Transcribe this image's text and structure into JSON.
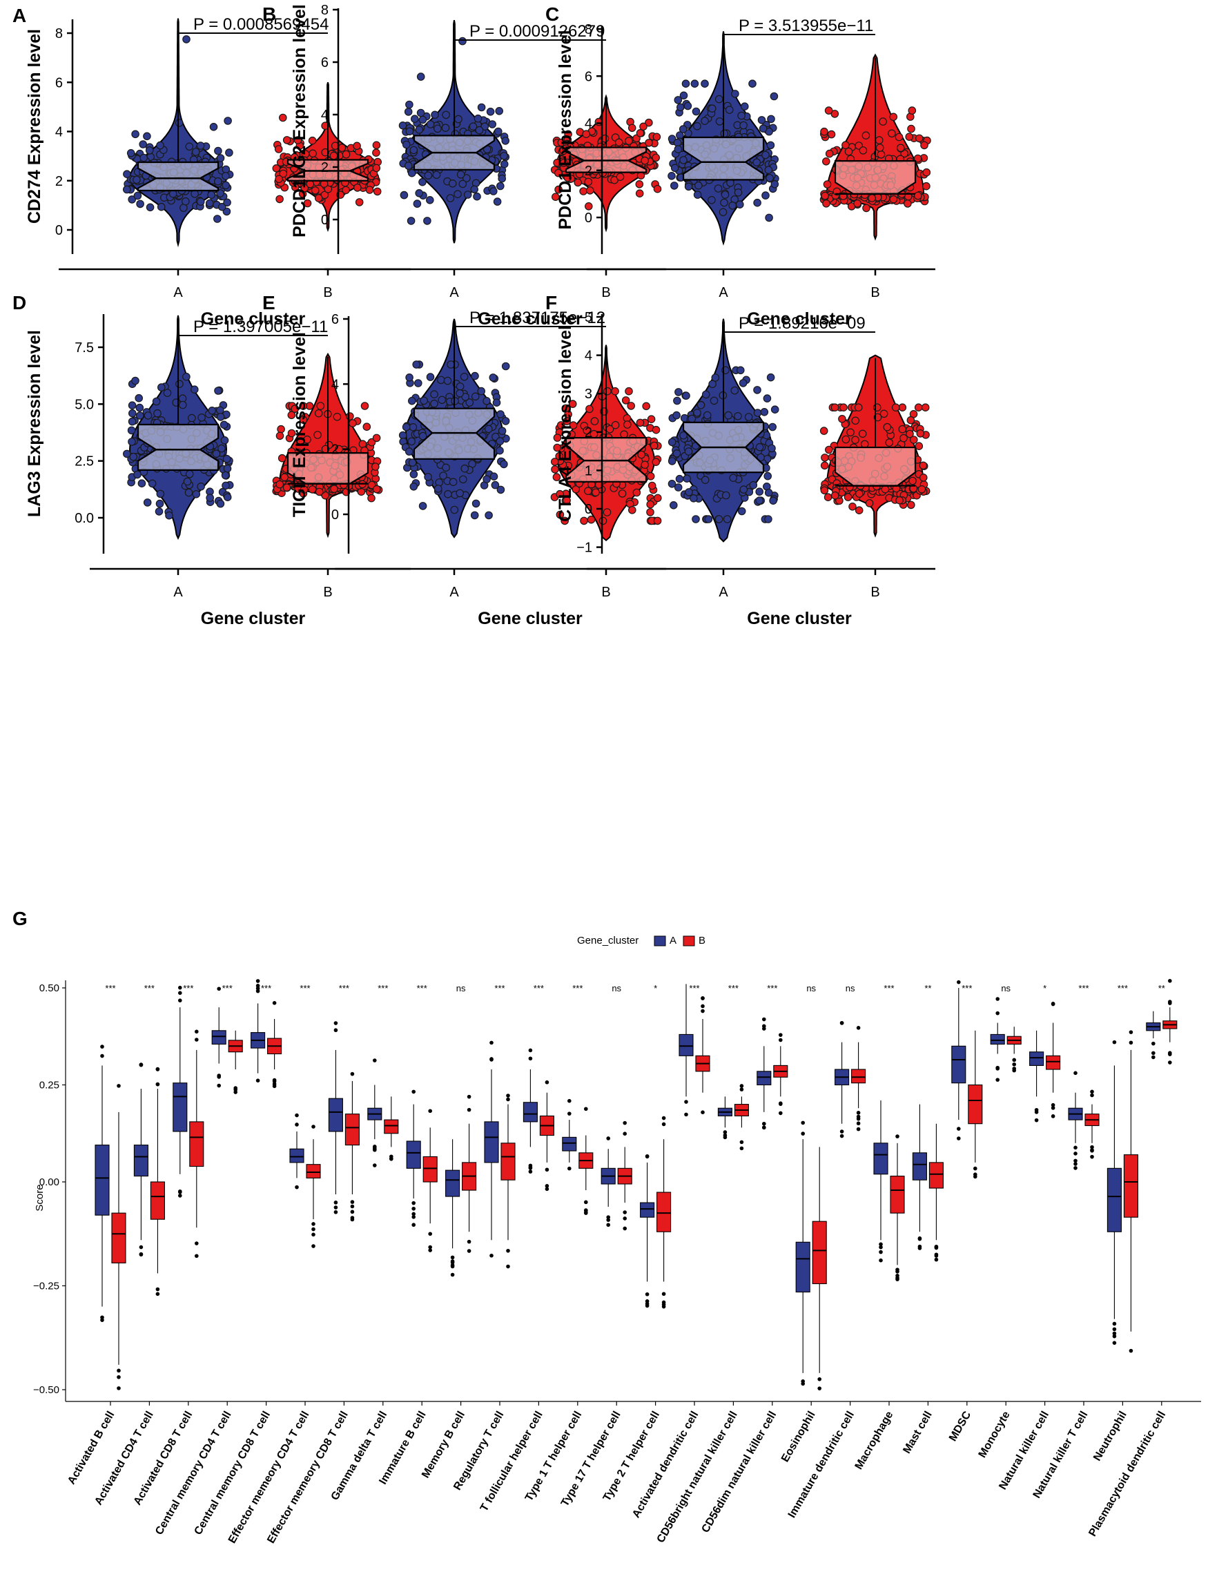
{
  "colors": {
    "cluster_a": "#2e3a8c",
    "cluster_b": "#e41a1c",
    "box_a_fill": "#b8bdd8",
    "box_b_fill": "#f5a8a8",
    "point_edge": "#1a1a1a"
  },
  "chart_data": [
    {
      "panel": "A",
      "type": "violin",
      "title": "",
      "xlabel": "Gene cluster",
      "ylabel": "CD274 Expression level",
      "categories": [
        "A",
        "B"
      ],
      "yticks": [
        "0",
        "2",
        "4",
        "6",
        "8"
      ],
      "ylim": [
        -0.6,
        8.6
      ],
      "p_value": "P = 0.0008569454",
      "series": [
        {
          "name": "A",
          "median": 2.1,
          "q1": 1.6,
          "q3": 2.75,
          "min": -0.6,
          "max": 8.6,
          "outlier": 7.75
        },
        {
          "name": "B",
          "median": 2.4,
          "q1": 2.0,
          "q3": 2.85,
          "min": 0.0,
          "max": 6.0
        }
      ]
    },
    {
      "panel": "B",
      "type": "violin",
      "title": "",
      "xlabel": "Gene cluster",
      "ylabel": "PDCD1LG2 Expression level",
      "categories": [
        "A",
        "B"
      ],
      "yticks": [
        "0",
        "2",
        "4",
        "6",
        "8"
      ],
      "ylim": [
        -0.9,
        8.0
      ],
      "p_value": "P = 0.0009126279",
      "series": [
        {
          "name": "A",
          "median": 2.55,
          "q1": 1.9,
          "q3": 3.2,
          "min": -0.9,
          "max": 7.6,
          "outlier": 6.8
        },
        {
          "name": "B",
          "median": 2.25,
          "q1": 1.8,
          "q3": 2.75,
          "min": -0.4,
          "max": 4.7
        }
      ]
    },
    {
      "panel": "C",
      "type": "violin",
      "title": "",
      "xlabel": "Gene cluster",
      "ylabel": "PDCD1 Expression level",
      "categories": [
        "A",
        "B"
      ],
      "yticks": [
        "0",
        "2",
        "4",
        "6",
        "8"
      ],
      "ylim": [
        -1.1,
        8.2
      ],
      "p_value": "P = 3.513955e−11",
      "series": [
        {
          "name": "A",
          "median": 2.35,
          "q1": 1.6,
          "q3": 3.4,
          "min": -1.1,
          "max": 7.9
        },
        {
          "name": "B",
          "median": 1.0,
          "q1": 1.0,
          "q3": 2.4,
          "min": -0.9,
          "max": 6.9
        }
      ]
    },
    {
      "panel": "D",
      "type": "violin",
      "title": "",
      "xlabel": "Gene cluster",
      "ylabel": "LAG3 Expression level",
      "categories": [
        "A",
        "B"
      ],
      "yticks": [
        "0.0",
        "2.5",
        "5.0",
        "7.5"
      ],
      "ylim": [
        -0.9,
        8.9
      ],
      "p_value": "P = 1.397005e−11",
      "series": [
        {
          "name": "A",
          "median": 3.0,
          "q1": 2.1,
          "q3": 4.1,
          "min": -0.9,
          "max": 8.9
        },
        {
          "name": "B",
          "median": 1.5,
          "q1": 1.5,
          "q3": 2.85,
          "min": -0.8,
          "max": 7.2
        }
      ]
    },
    {
      "panel": "E",
      "type": "violin",
      "title": "",
      "xlabel": "Gene cluster",
      "ylabel": "TIGIT Expression level",
      "categories": [
        "A",
        "B"
      ],
      "yticks": [
        "0",
        "2",
        "4",
        "6"
      ],
      "ylim": [
        -0.8,
        6.1
      ],
      "p_value": "P = 1.837175e−12",
      "series": [
        {
          "name": "A",
          "median": 2.5,
          "q1": 1.7,
          "q3": 3.25,
          "min": -0.7,
          "max": 6.0
        },
        {
          "name": "B",
          "median": 1.65,
          "q1": 1.0,
          "q3": 2.35,
          "min": -0.8,
          "max": 5.2
        }
      ]
    },
    {
      "panel": "F",
      "type": "violin",
      "title": "",
      "xlabel": "Gene cluster",
      "ylabel": "CTLA4 Expression level",
      "categories": [
        "A",
        "B"
      ],
      "yticks": [
        "−1",
        "0",
        "1",
        "2",
        "3",
        "4",
        "5"
      ],
      "ylim": [
        -0.85,
        5.0
      ],
      "p_value": "P = 1.89216e−09",
      "series": [
        {
          "name": "A",
          "median": 1.6,
          "q1": 0.95,
          "q3": 2.25,
          "min": -0.85,
          "max": 4.95
        },
        {
          "name": "B",
          "median": 0.6,
          "q1": 0.6,
          "q3": 1.6,
          "min": -0.7,
          "max": 4.0
        }
      ]
    },
    {
      "panel": "G",
      "type": "box",
      "title": "",
      "xlabel": "",
      "ylabel": "Score",
      "legend_title": "Gene_cluster",
      "legend_entries": [
        "A",
        "B"
      ],
      "legend_position": "top",
      "yticks": [
        "−0.50",
        "−0.25",
        "0.00",
        "0.25",
        "0.50"
      ],
      "ylim": [
        -0.5,
        0.5
      ],
      "categories": [
        "Activated B cell",
        "Activated CD4 T cell",
        "Activated CD8 T cell",
        "Central memory CD4 T cell",
        "Central memory CD8 T cell",
        "Effector memeory CD4 T cell",
        "Effector memeory CD8 T cell",
        "Gamma delta T cell",
        "Immature  B cell",
        "Memory B cell",
        "Regulatory T cell",
        "T follicular helper cell",
        "Type 1 T helper cell",
        "Type 17 T helper cell",
        "Type 2 T helper cell",
        "Activated dendritic cell",
        "CD56bright natural killer cell",
        "CD56dim natural killer cell",
        "Eosinophil",
        "Immature dendritic cell",
        "Macrophage",
        "Mast cell",
        "MDSC",
        "Monocyte",
        "Natural killer cell",
        "Natural killer T cell",
        "Neutrophil",
        "Plasmacytoid dendritic cell"
      ],
      "significance": [
        "***",
        "***",
        "***",
        "***",
        "***",
        "***",
        "***",
        "***",
        "***",
        "ns",
        "***",
        "***",
        "***",
        "ns",
        "*",
        "***",
        "***",
        "***",
        "ns",
        "ns",
        "***",
        "**",
        "***",
        "ns",
        "*",
        "***",
        "***",
        "**"
      ],
      "series": [
        {
          "name": "A",
          "median": [
            0.01,
            0.065,
            0.22,
            0.375,
            0.365,
            0.065,
            0.18,
            0.175,
            0.075,
            0.005,
            0.115,
            0.175,
            0.1,
            0.015,
            -0.065,
            0.35,
            0.18,
            0.27,
            -0.185,
            0.27,
            0.07,
            0.045,
            0.315,
            0.365,
            0.32,
            0.175,
            -0.035,
            0.4
          ],
          "q1": [
            -0.08,
            0.015,
            0.13,
            0.355,
            0.345,
            0.05,
            0.13,
            0.16,
            0.035,
            -0.035,
            0.05,
            0.155,
            0.08,
            -0.005,
            -0.085,
            0.325,
            0.17,
            0.25,
            -0.265,
            0.25,
            0.02,
            0.005,
            0.255,
            0.355,
            0.3,
            0.16,
            -0.12,
            0.39
          ],
          "q3": [
            0.095,
            0.095,
            0.255,
            0.39,
            0.385,
            0.085,
            0.215,
            0.19,
            0.105,
            0.03,
            0.155,
            0.205,
            0.115,
            0.035,
            -0.05,
            0.38,
            0.19,
            0.285,
            -0.145,
            0.29,
            0.1,
            0.075,
            0.35,
            0.38,
            0.335,
            0.19,
            0.035,
            0.41
          ],
          "whisker_low": [
            -0.3,
            -0.14,
            0.02,
            0.305,
            0.28,
            0.01,
            -0.03,
            0.11,
            -0.04,
            -0.16,
            -0.14,
            0.09,
            0.05,
            -0.06,
            -0.24,
            0.22,
            0.14,
            0.18,
            -0.46,
            0.15,
            -0.14,
            -0.12,
            0.16,
            0.33,
            0.22,
            0.1,
            -0.33,
            0.37
          ],
          "whisker_high": [
            0.3,
            0.24,
            0.45,
            0.45,
            0.46,
            0.13,
            0.34,
            0.25,
            0.2,
            0.11,
            0.29,
            0.29,
            0.16,
            0.085,
            0.05,
            0.51,
            0.22,
            0.35,
            0.11,
            0.36,
            0.21,
            0.2,
            0.5,
            0.41,
            0.39,
            0.23,
            0.3,
            0.44
          ]
        },
        {
          "name": "B",
          "median": [
            -0.125,
            -0.035,
            0.115,
            0.35,
            0.35,
            0.025,
            0.14,
            0.145,
            0.035,
            0.015,
            0.065,
            0.145,
            0.055,
            0.015,
            -0.075,
            0.305,
            0.185,
            0.285,
            -0.165,
            0.27,
            -0.02,
            0.02,
            0.21,
            0.365,
            0.31,
            0.16,
            0.0,
            0.405
          ],
          "q1": [
            -0.195,
            -0.09,
            0.04,
            0.335,
            0.33,
            0.01,
            0.095,
            0.125,
            0.0,
            -0.02,
            0.005,
            0.12,
            0.035,
            -0.005,
            -0.12,
            0.285,
            0.17,
            0.27,
            -0.245,
            0.255,
            -0.075,
            -0.015,
            0.15,
            0.355,
            0.29,
            0.145,
            -0.085,
            0.395
          ],
          "q3": [
            -0.075,
            0.0,
            0.155,
            0.365,
            0.37,
            0.045,
            0.175,
            0.16,
            0.065,
            0.05,
            0.1,
            0.17,
            0.075,
            0.035,
            -0.025,
            0.325,
            0.2,
            0.3,
            -0.095,
            0.29,
            0.015,
            0.05,
            0.25,
            0.375,
            0.325,
            0.175,
            0.07,
            0.415
          ],
          "whisker_low": [
            -0.44,
            -0.22,
            -0.11,
            0.29,
            0.29,
            -0.09,
            -0.03,
            0.09,
            -0.1,
            -0.12,
            -0.14,
            0.05,
            -0.02,
            -0.05,
            -0.24,
            0.23,
            0.14,
            0.22,
            -0.46,
            0.19,
            -0.2,
            -0.14,
            0.05,
            0.33,
            0.23,
            0.1,
            -0.36,
            0.36
          ],
          "whisker_high": [
            0.18,
            0.24,
            0.34,
            0.39,
            0.42,
            0.11,
            0.26,
            0.22,
            0.14,
            0.15,
            0.2,
            0.23,
            0.12,
            0.09,
            0.11,
            0.42,
            0.22,
            0.35,
            0.09,
            0.36,
            0.1,
            0.15,
            0.39,
            0.4,
            0.41,
            0.2,
            0.34,
            0.45
          ]
        }
      ]
    }
  ]
}
